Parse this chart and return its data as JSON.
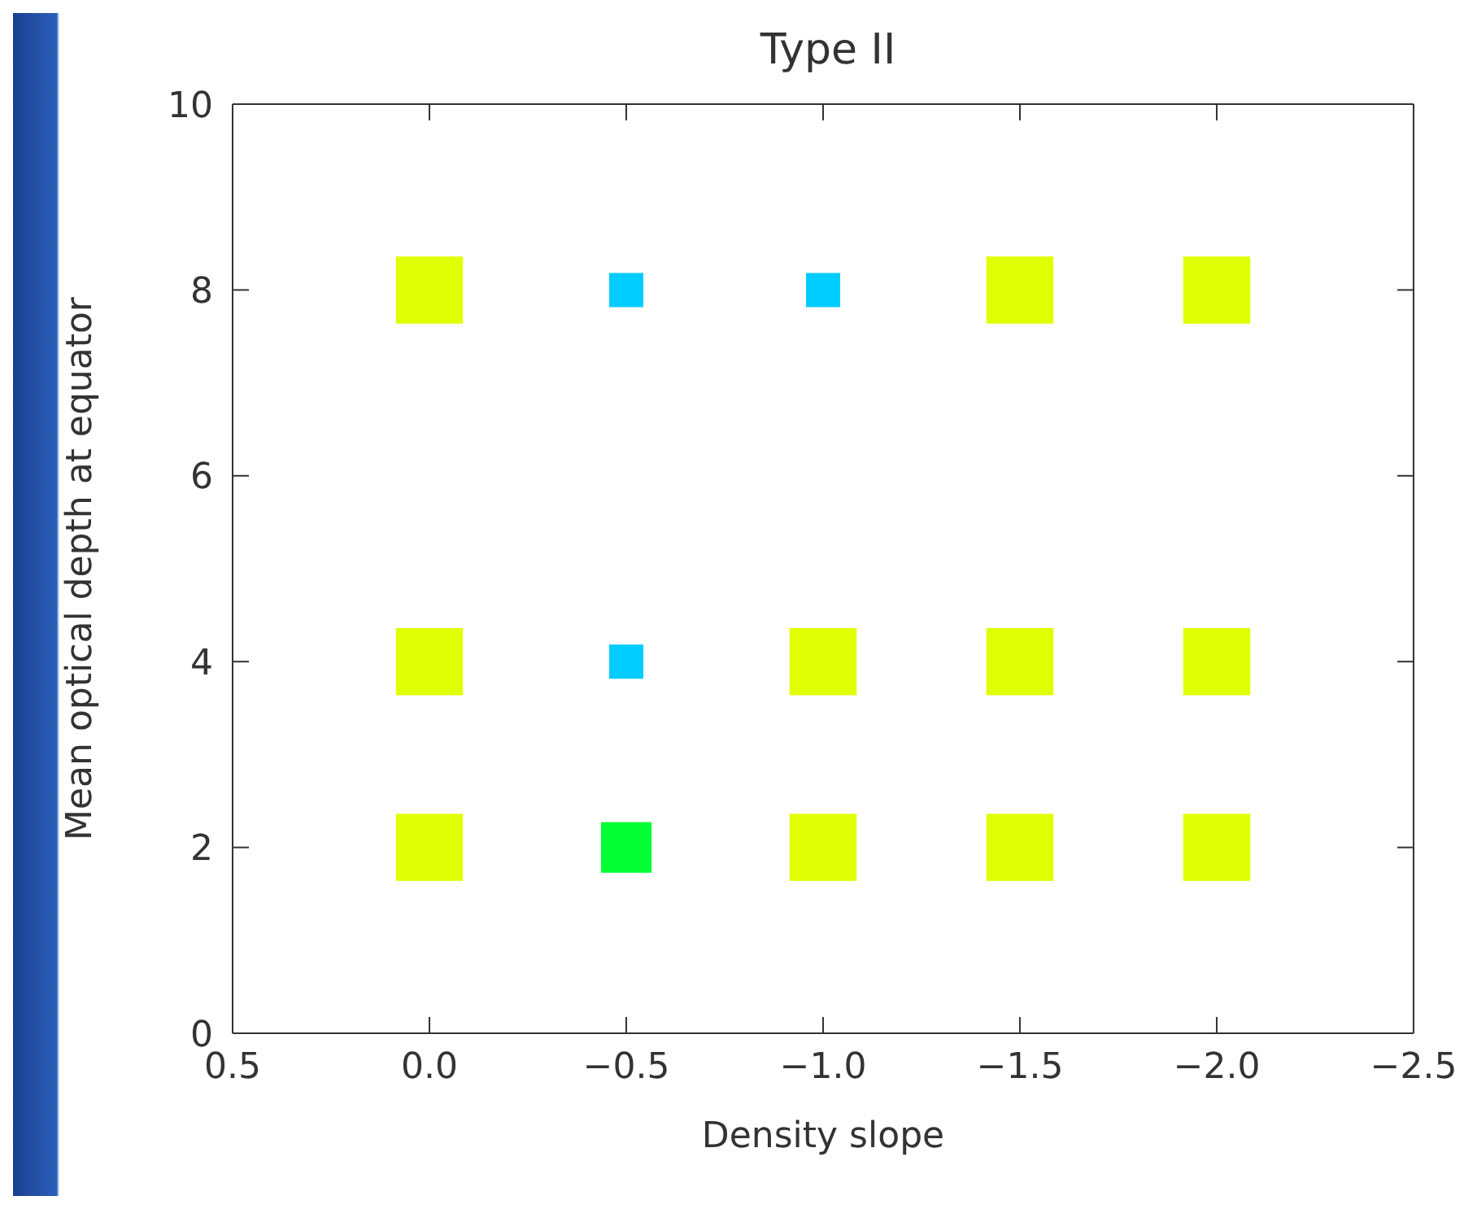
{
  "chart_data": {
    "type": "bubble",
    "title": "Type II",
    "xlabel": "Density slope",
    "ylabel": "Mean optical depth at equator",
    "xlim": [
      0.5,
      -2.5
    ],
    "xticks": [
      {
        "value": 0.5,
        "label": "0.5"
      },
      {
        "value": 0,
        "label": "0.0"
      },
      {
        "value": -0.5,
        "label": "−0.5"
      },
      {
        "value": -1,
        "label": "−1.0"
      },
      {
        "value": -1.5,
        "label": "−1.5"
      },
      {
        "value": -2,
        "label": "−2.0"
      },
      {
        "value": -2.5,
        "label": "−2.5"
      }
    ],
    "ylim": [
      0,
      10
    ],
    "yticks": [
      0,
      2,
      4,
      6,
      8,
      10
    ],
    "marker": "square",
    "series": [
      {
        "color": "#e0ff00",
        "x": [
          0,
          -1.5,
          -2,
          0,
          -1,
          -1.5,
          -2,
          0,
          -1,
          -1.5,
          -2
        ],
        "values": [
          8,
          8,
          8,
          4,
          4,
          4,
          4,
          2,
          2,
          2,
          2
        ],
        "sizes": [
          1,
          1,
          1,
          1,
          1,
          1,
          1,
          1,
          1,
          1,
          1
        ]
      },
      {
        "color": "#00ccff",
        "x": [
          -0.5,
          -1,
          -0.5
        ],
        "values": [
          8,
          8,
          4
        ],
        "sizes": [
          0.26,
          0.26,
          0.26
        ]
      },
      {
        "color": "#00ff33",
        "x": [
          -0.5
        ],
        "values": [
          2
        ],
        "sizes": [
          0.57
        ]
      }
    ]
  }
}
